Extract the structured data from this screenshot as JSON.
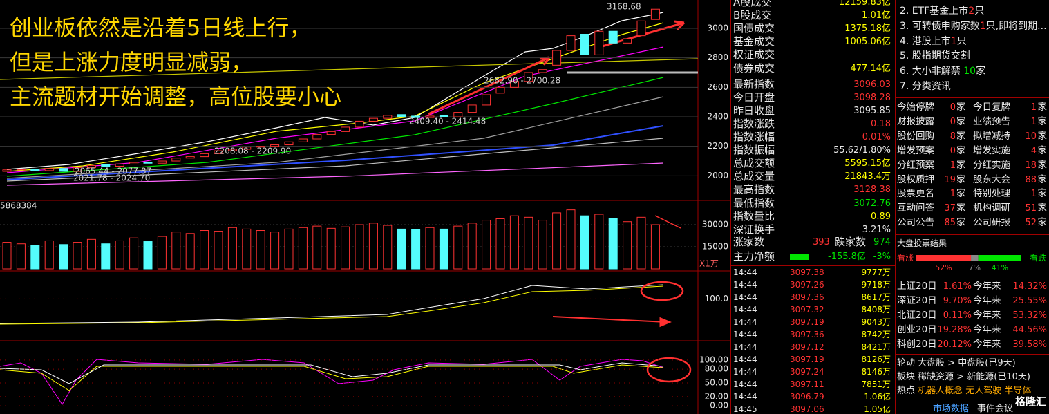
{
  "annotation": {
    "lines": [
      "创业板依然是沿着5日线上行，",
      "但是上涨力度明显减弱，",
      "主流题材开始调整，高位股要小心"
    ]
  },
  "kline": {
    "ylim": [
      1833,
      3192
    ],
    "ticks": [
      3000,
      2800,
      2600,
      2400,
      2200,
      2000
    ],
    "open": [
      2030,
      2040,
      2045,
      2035,
      2050,
      2030,
      2055,
      2075,
      2065,
      2080,
      2092,
      2085,
      2100,
      2120,
      2130,
      2150,
      2170,
      2180,
      2195,
      2200,
      2210,
      2230,
      2250,
      2280,
      2300,
      2330,
      2370,
      2390,
      2415,
      2405,
      2395,
      2408,
      2400,
      2430,
      2480,
      2560,
      2600,
      2640,
      2700,
      2750,
      2850,
      2960,
      2820,
      2980,
      2900,
      2950,
      3060
    ],
    "close": [
      2040,
      2045,
      2035,
      2050,
      2030,
      2055,
      2070,
      2065,
      2080,
      2090,
      2085,
      2100,
      2120,
      2130,
      2150,
      2170,
      2180,
      2195,
      2200,
      2210,
      2230,
      2250,
      2280,
      2300,
      2330,
      2370,
      2390,
      2410,
      2400,
      2395,
      2405,
      2400,
      2430,
      2480,
      2550,
      2600,
      2640,
      2700,
      2720,
      2850,
      2950,
      2820,
      2980,
      2900,
      2930,
      3050,
      3130
    ],
    "price_labels": [
      "3168.68",
      "2682.90 - 2700.28",
      "2409.40 - 2414.48",
      "2208.08 - 2209.90",
      "2065.44 - 2077.87",
      "2021.78 - 2024.70"
    ]
  },
  "volume": {
    "top_label": "5868384",
    "unit_label": "X1万",
    "ylim": [
      0,
      46400
    ],
    "ticks": [
      30000,
      15000
    ],
    "values": [
      18000,
      17000,
      16000,
      19000,
      16500,
      18000,
      20000,
      17000,
      19000,
      21000,
      18500,
      22000,
      25000,
      24000,
      26000,
      25500,
      28000,
      27000,
      26000,
      25000,
      27000,
      28000,
      29000,
      27500,
      28500,
      30000,
      31000,
      29500,
      27000,
      26500,
      28000,
      27000,
      29000,
      31000,
      33000,
      34000,
      36000,
      35000,
      33000,
      38000,
      40000,
      36000,
      37000,
      34000,
      32000,
      35000,
      30000
    ]
  },
  "indicator1": {
    "ylim": [
      40,
      140
    ],
    "ticks": [
      {
        "value": 100,
        "label": "100.0"
      }
    ]
  },
  "indicator2": {
    "ylim": [
      -18,
      142
    ],
    "ticks": [
      {
        "value": 100,
        "label": "100.00"
      },
      {
        "value": 80,
        "label": "80.00"
      },
      {
        "value": 50,
        "label": "50.00"
      },
      {
        "value": 20,
        "label": "20.00"
      },
      {
        "value": 0,
        "label": "0.00"
      }
    ]
  },
  "market": {
    "rows": [
      {
        "label": "A股成交",
        "value": "12159.83亿",
        "color": "#ffff00"
      },
      {
        "label": "B股成交",
        "value": "1.01亿",
        "color": "#ffff00"
      },
      {
        "label": "国债成交",
        "value": "1375.18亿",
        "color": "#ffff00"
      },
      {
        "label": "基金成交",
        "value": "1005.06亿",
        "color": "#ffff00"
      },
      {
        "label": "权证成交"
      },
      {
        "label": "债券成交",
        "value": "477.14亿",
        "color": "#ffff00"
      },
      {
        "label": "最新指数",
        "value": "3096.03",
        "color": "#ff3232"
      },
      {
        "label": "今日开盘",
        "value": "3098.28",
        "color": "#ff3232"
      },
      {
        "label": "昨日收盘",
        "value": "3095.85",
        "color": "#e8e8e8"
      },
      {
        "label": "指数涨跌",
        "value": "0.18",
        "color": "#ff3232"
      },
      {
        "label": "指数涨幅",
        "value": "0.01%",
        "color": "#ff3232"
      },
      {
        "label": "指数振幅",
        "value": "55.62/1.80%",
        "color": "#e8e8e8"
      },
      {
        "label": "总成交额",
        "value": "5595.15亿",
        "color": "#ffff00"
      },
      {
        "label": "总成交量",
        "value": "21843.4万",
        "color": "#ffff00"
      },
      {
        "label": "最高指数",
        "value": "3128.38",
        "color": "#ff3232"
      },
      {
        "label": "最低指数",
        "value": "3072.76",
        "color": "#00e600"
      },
      {
        "label": "指数量比",
        "value": "0.89",
        "color": "#ffff00"
      },
      {
        "label": "深证换手",
        "value": "3.21%",
        "color": "#e8e8e8"
      }
    ],
    "breadth": {
      "up_label": "涨家数",
      "up": "393",
      "down_label": "跌家数",
      "down": "974"
    },
    "flow": {
      "label": "主力净额",
      "value": "-155.8亿",
      "pct": "-3%"
    }
  },
  "ticks": {
    "rows": [
      [
        "14:44",
        "3097.38",
        "9777万"
      ],
      [
        "14:44",
        "3097.26",
        "9718万"
      ],
      [
        "14:44",
        "3097.36",
        "8617万"
      ],
      [
        "14:44",
        "3097.32",
        "8408万"
      ],
      [
        "14:44",
        "3097.19",
        "9043万"
      ],
      [
        "14:44",
        "3097.36",
        "8742万"
      ],
      [
        "14:44",
        "3097.12",
        "8421万"
      ],
      [
        "14:44",
        "3097.19",
        "8126万"
      ],
      [
        "14:44",
        "3097.24",
        "8146万"
      ],
      [
        "14:44",
        "3097.11",
        "7851万"
      ],
      [
        "14:44",
        "3096.79",
        "1.06亿"
      ],
      [
        "14:45",
        "3097.06",
        "1.05亿"
      ]
    ]
  },
  "news": {
    "items": [
      [
        {
          "t": "2. ETF基金上市"
        },
        {
          "t": "2",
          "c": "#ff3232"
        },
        {
          "t": "只"
        }
      ],
      [
        {
          "t": "3. 可转债申购家数"
        },
        {
          "t": "1",
          "c": "#ff3232"
        },
        {
          "t": "只,即将到期..."
        }
      ],
      [
        {
          "t": "4. 港股上市"
        },
        {
          "t": "1",
          "c": "#ff3232"
        },
        {
          "t": "只"
        }
      ],
      [
        {
          "t": "5. 股指期货交割"
        }
      ],
      [
        {
          "t": "6. 大小非解禁 "
        },
        {
          "t": "10",
          "c": "#00e600"
        },
        {
          "t": "家"
        }
      ],
      [
        {
          "t": "7. 分类资讯"
        }
      ]
    ]
  },
  "events": {
    "unit": "家",
    "rows": [
      [
        "今始停牌",
        "0",
        "今日复牌",
        "1"
      ],
      [
        "财报披露",
        "0",
        "业绩预告",
        "1"
      ],
      [
        "股份回购",
        "8",
        "拟增减持",
        "10"
      ],
      [
        "增发预案",
        "0",
        "增发实施",
        "4"
      ],
      [
        "分红预案",
        "1",
        "分红实施",
        "18"
      ],
      [
        "股权质押",
        "19",
        "股东大会",
        "88"
      ],
      [
        "股票更名",
        "1",
        "特别处理",
        "1"
      ],
      [
        "互动问答",
        "37",
        "机构调研",
        "51"
      ],
      [
        "公司公告",
        "85",
        "公司研报",
        "52"
      ]
    ]
  },
  "vote": {
    "title": "大盘投票结果",
    "bull": "看涨",
    "bear": "看跌",
    "shares": [
      52,
      7,
      41
    ],
    "labels": [
      "52%",
      "7%",
      "41%"
    ]
  },
  "perf": {
    "ytd_label": "今年来",
    "rows": [
      [
        "上证20日",
        "1.61%",
        "14.32%"
      ],
      [
        "深证20日",
        "9.70%",
        "25.55%"
      ],
      [
        "北证20日",
        "0.11%",
        "53.32%"
      ],
      [
        "创业20日",
        "19.28%",
        "44.56%"
      ],
      [
        "科创20日",
        "20.12%",
        "39.58%"
      ]
    ]
  },
  "rotation": {
    "rows": [
      [
        {
          "t": "轮动 "
        },
        {
          "t": "大盘股 > 中盘股(已9天)"
        }
      ],
      [
        {
          "t": "板块 "
        },
        {
          "t": "稀缺资源 > 新能源(已10天)"
        }
      ],
      [
        {
          "t": "热点 "
        },
        {
          "t": "机器人概念 无人驾驶 半导体",
          "c": "#ffaa00"
        }
      ]
    ],
    "footer": [
      "市场数据",
      "事件会议"
    ],
    "logo": "格隆汇"
  }
}
